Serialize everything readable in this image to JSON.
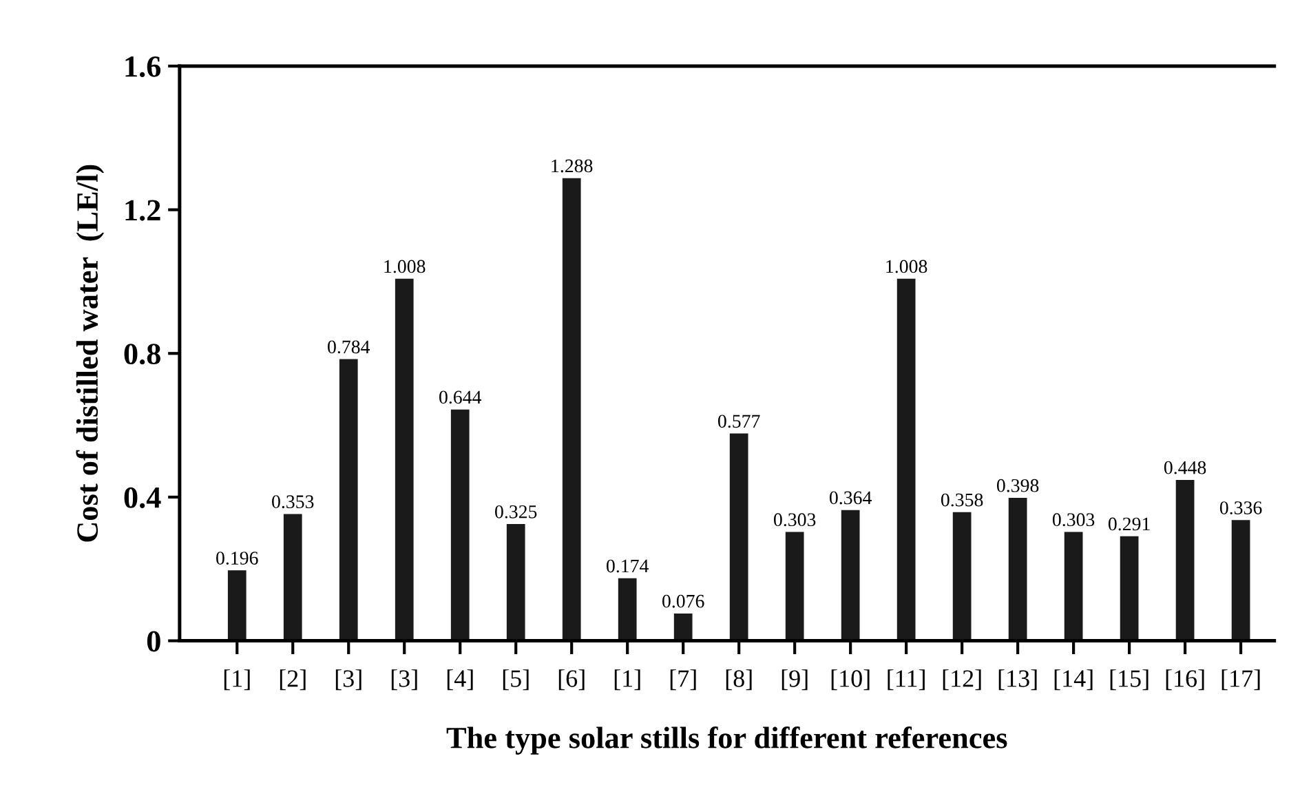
{
  "chart_data": {
    "type": "bar",
    "xlabel": "The type solar stills for different references",
    "ylabel": "Cost of distilled water  (LE/l)",
    "categories": [
      "[1]",
      "[2]",
      "[3]",
      "[3]",
      "[4]",
      "[5]",
      "[6]",
      "[1]",
      "[7]",
      "[8]",
      "[9]",
      "[10]",
      "[11]",
      "[12]",
      "[13]",
      "[14]",
      "[15]",
      "[16]",
      "[17]"
    ],
    "values": [
      0.196,
      0.353,
      0.784,
      1.008,
      0.644,
      0.325,
      1.288,
      0.174,
      0.076,
      0.577,
      0.303,
      0.364,
      1.008,
      0.358,
      0.398,
      0.303,
      0.291,
      0.448,
      0.336
    ],
    "color": "#1a1a1a",
    "ylim": [
      0,
      1.6
    ],
    "yticks": [
      0,
      0.4,
      0.8,
      1.2,
      1.6
    ],
    "data_labels": true,
    "grid": false,
    "legend": false
  }
}
